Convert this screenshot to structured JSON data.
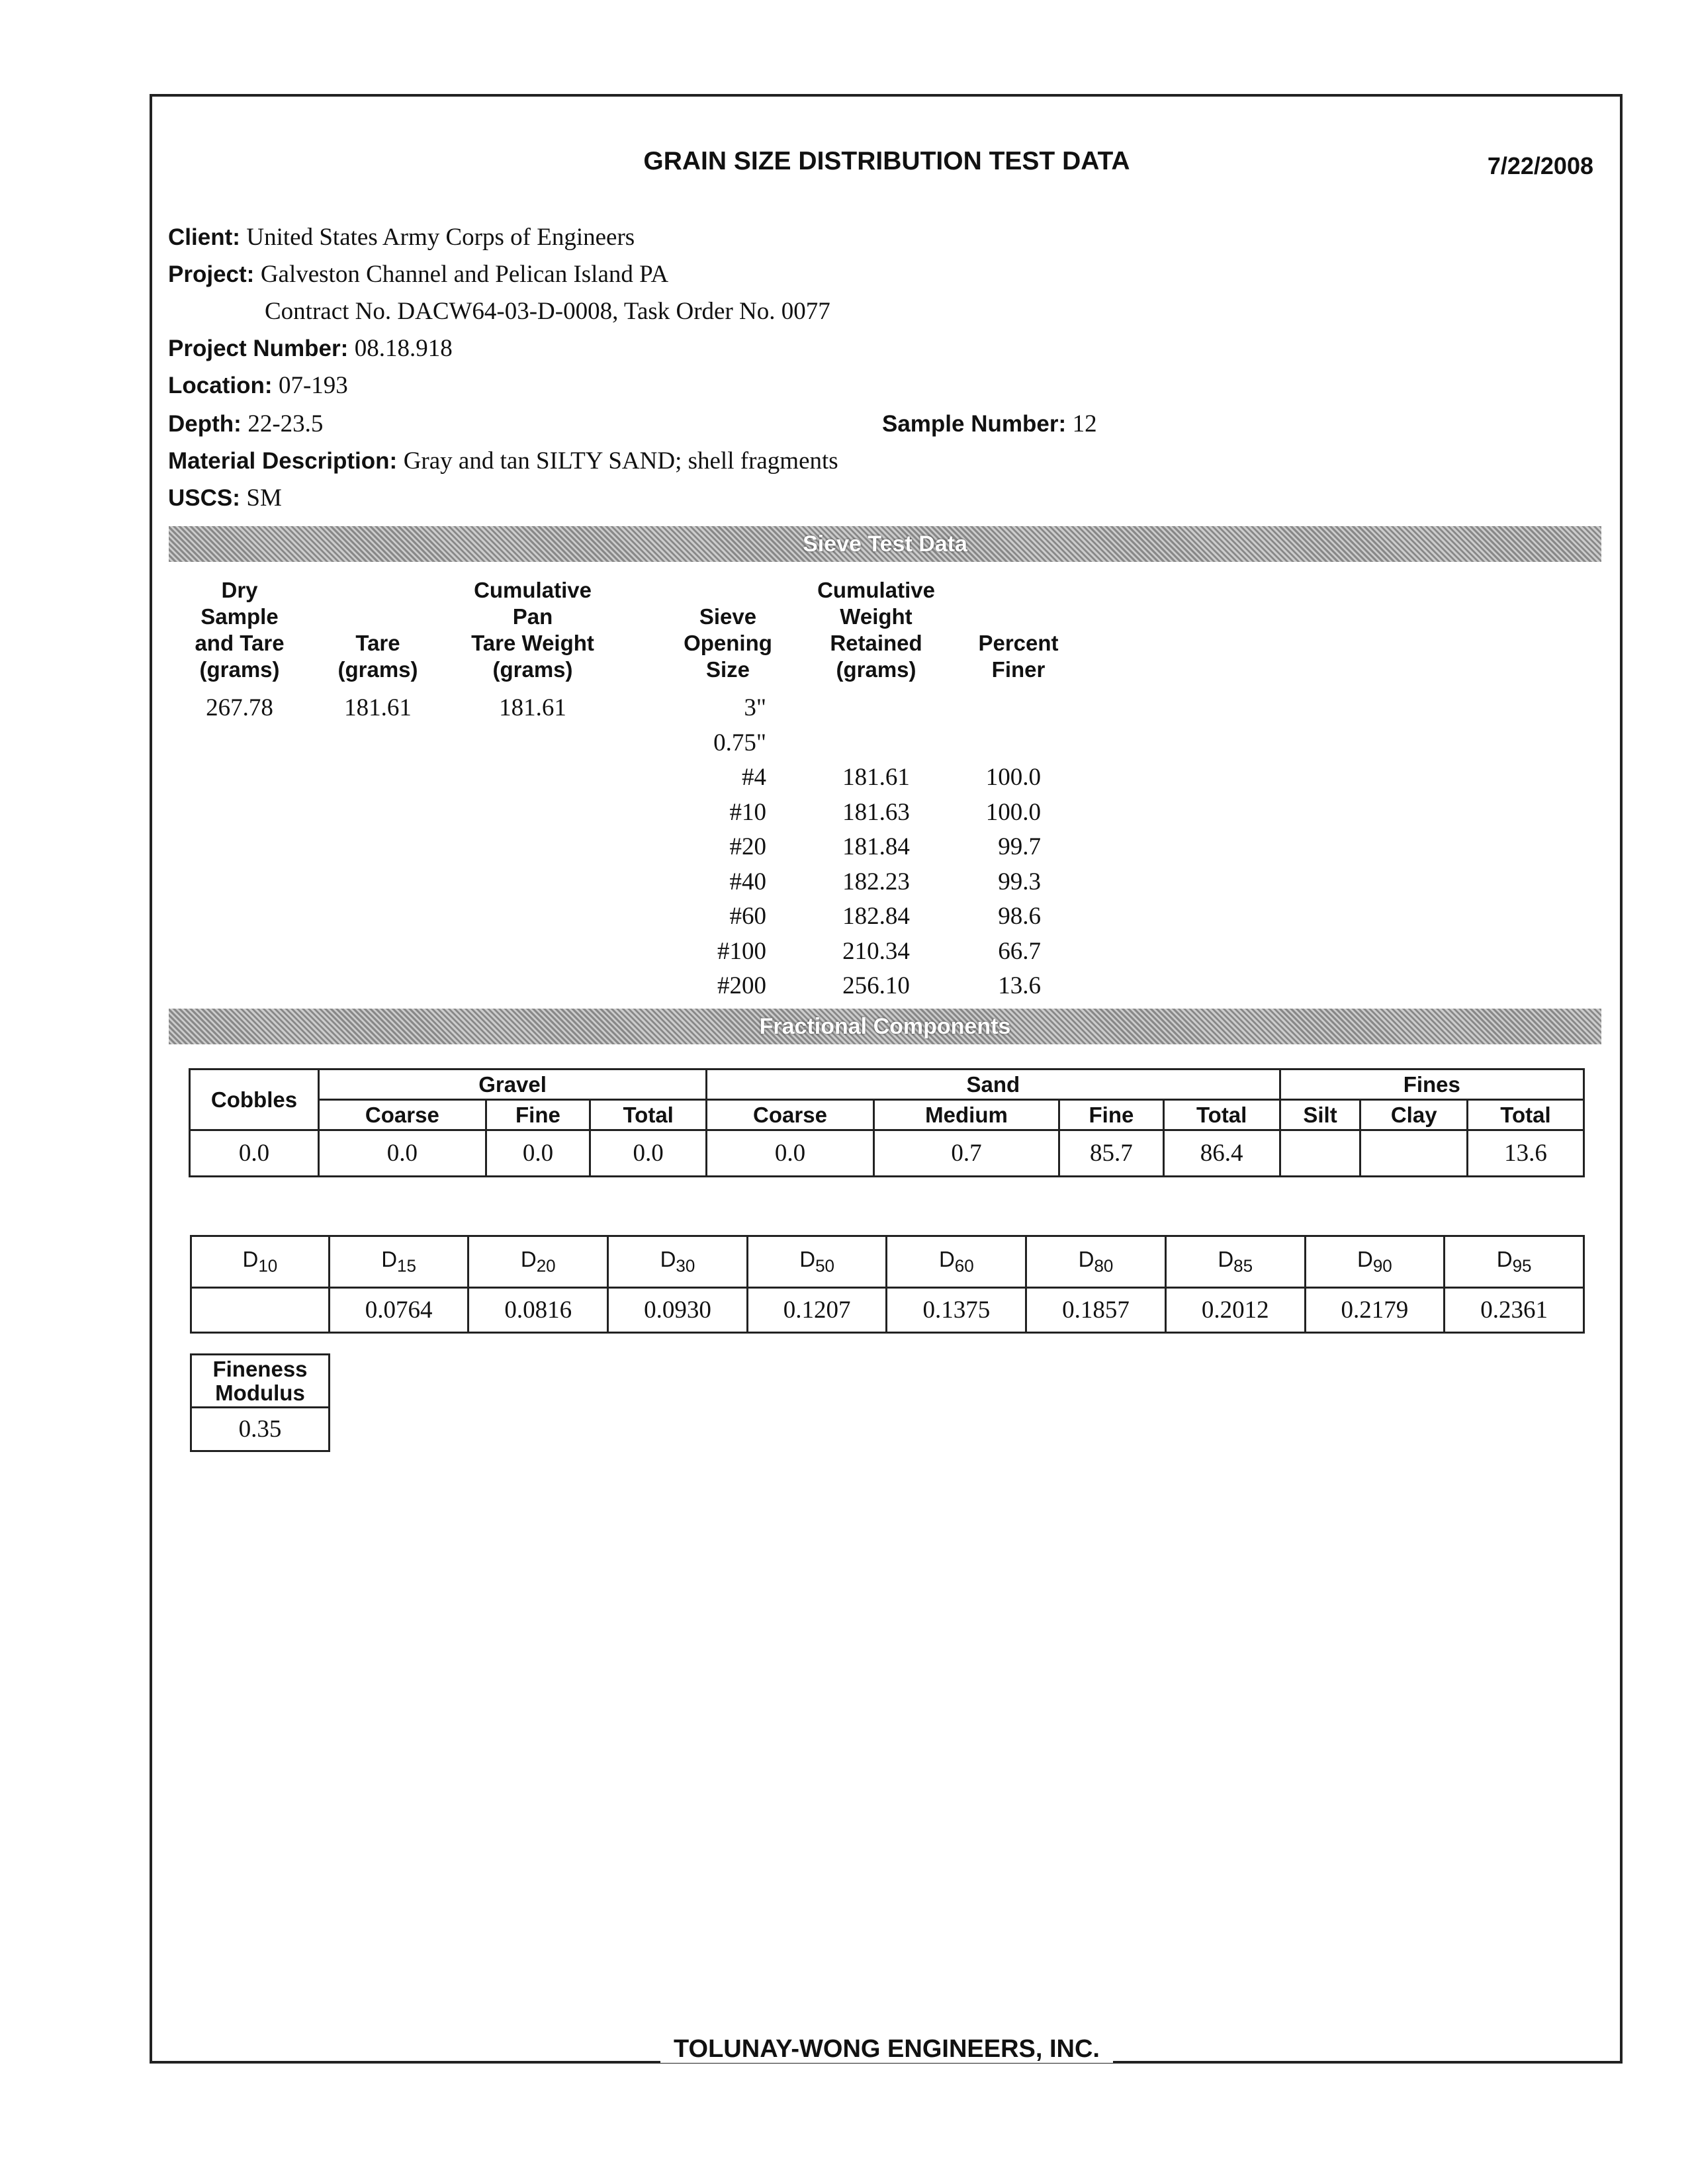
{
  "header": {
    "title": "GRAIN SIZE DISTRIBUTION TEST DATA",
    "date": "7/22/2008"
  },
  "info": {
    "client_label": "Client:",
    "client": "United States Army Corps of Engineers",
    "project_label": "Project:",
    "project": "Galveston Channel and Pelican Island PA",
    "contract": "Contract No. DACW64-03-D-0008, Task Order No. 0077",
    "project_number_label": "Project Number:",
    "project_number": "08.18.918",
    "location_label": "Location:",
    "location": "07-193",
    "depth_label": "Depth:",
    "depth": "22-23.5",
    "sample_number_label": "Sample Number:",
    "sample_number": "12",
    "material_label": "Material Description:",
    "material": "Gray and tan SILTY SAND; shell fragments",
    "uscs_label": "USCS:",
    "uscs": "SM"
  },
  "sieve": {
    "bar_label": "Sieve Test Data",
    "headers": [
      "Dry\nSample\nand Tare\n(grams)",
      "Tare\n(grams)",
      "Cumulative\nPan\nTare Weight\n(grams)",
      "Sieve\nOpening\nSize",
      "Cumulative\nWeight\nRetained\n(grams)",
      "Percent\nFiner"
    ],
    "dry_sample": "267.78",
    "tare": "181.61",
    "pan_tare": "181.61",
    "rows": [
      {
        "size": "3\"",
        "retained": "",
        "finer": ""
      },
      {
        "size": "0.75\"",
        "retained": "",
        "finer": ""
      },
      {
        "size": "#4",
        "retained": "181.61",
        "finer": "100.0"
      },
      {
        "size": "#10",
        "retained": "181.63",
        "finer": "100.0"
      },
      {
        "size": "#20",
        "retained": "181.84",
        "finer": "99.7"
      },
      {
        "size": "#40",
        "retained": "182.23",
        "finer": "99.3"
      },
      {
        "size": "#60",
        "retained": "182.84",
        "finer": "98.6"
      },
      {
        "size": "#100",
        "retained": "210.34",
        "finer": "66.7"
      },
      {
        "size": "#200",
        "retained": "256.10",
        "finer": "13.6"
      }
    ]
  },
  "fractional": {
    "bar_label": "Fractional Components",
    "groups": {
      "cobbles": "Cobbles",
      "gravel": "Gravel",
      "sand": "Sand",
      "fines": "Fines"
    },
    "subheaders": [
      "Coarse",
      "Fine",
      "Total",
      "Coarse",
      "Medium",
      "Fine",
      "Total",
      "Silt",
      "Clay",
      "Total"
    ],
    "values": [
      "0.0",
      "0.0",
      "0.0",
      "0.0",
      "0.0",
      "0.7",
      "85.7",
      "86.4",
      "",
      "",
      "13.6"
    ]
  },
  "d_values": {
    "labels": [
      [
        "D",
        "10"
      ],
      [
        "D",
        "15"
      ],
      [
        "D",
        "20"
      ],
      [
        "D",
        "30"
      ],
      [
        "D",
        "50"
      ],
      [
        "D",
        "60"
      ],
      [
        "D",
        "80"
      ],
      [
        "D",
        "85"
      ],
      [
        "D",
        "90"
      ],
      [
        "D",
        "95"
      ]
    ],
    "values": [
      "",
      "0.0764",
      "0.0816",
      "0.0930",
      "0.1207",
      "0.1375",
      "0.1857",
      "0.2012",
      "0.2179",
      "0.2361"
    ]
  },
  "fineness": {
    "label": "Fineness\nModulus",
    "value": "0.35"
  },
  "footer": {
    "company": "TOLUNAY-WONG ENGINEERS, INC."
  }
}
